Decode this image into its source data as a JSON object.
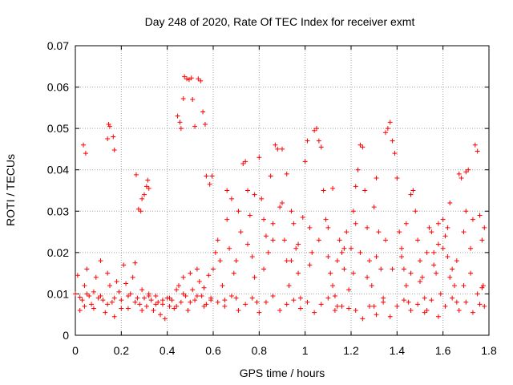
{
  "chart_data": {
    "type": "scatter",
    "title": "Day 248 of 2020, Rate Of TEC Index for receiver exmt",
    "xlabel": "GPS time / hours",
    "ylabel": "ROTI / TECUs",
    "xlim": [
      0,
      1.8
    ],
    "ylim": [
      0,
      0.07
    ],
    "xticks": [
      "0",
      "0.2",
      "0.4",
      "0.6",
      "0.8",
      "1",
      "1.2",
      "1.4",
      "1.6",
      "1.8"
    ],
    "yticks": [
      "0",
      "0.01",
      "0.02",
      "0.03",
      "0.04",
      "0.05",
      "0.06",
      "0.07"
    ],
    "grid": true,
    "legend": "none",
    "marker": "+",
    "color": "#ff0000",
    "series": [
      {
        "points": [
          [
            0.0,
            0.01
          ],
          [
            0.01,
            0.0145
          ],
          [
            0.02,
            0.0092
          ],
          [
            0.03,
            0.0085
          ],
          [
            0.04,
            0.007
          ],
          [
            0.04,
            0.012
          ],
          [
            0.05,
            0.016
          ],
          [
            0.06,
            0.0095
          ],
          [
            0.07,
            0.0075
          ],
          [
            0.08,
            0.0105
          ],
          [
            0.09,
            0.014
          ],
          [
            0.1,
            0.009
          ],
          [
            0.11,
            0.018
          ],
          [
            0.12,
            0.0085
          ],
          [
            0.13,
            0.0055
          ],
          [
            0.14,
            0.015
          ],
          [
            0.15,
            0.012
          ],
          [
            0.16,
            0.008
          ],
          [
            0.17,
            0.0045
          ],
          [
            0.18,
            0.013
          ],
          [
            0.035,
            0.046
          ],
          [
            0.045,
            0.044
          ],
          [
            0.14,
            0.0475
          ],
          [
            0.145,
            0.051
          ],
          [
            0.15,
            0.0505
          ],
          [
            0.165,
            0.048
          ],
          [
            0.17,
            0.0448
          ],
          [
            0.19,
            0.0105
          ],
          [
            0.2,
            0.0085
          ],
          [
            0.21,
            0.017
          ],
          [
            0.22,
            0.0125
          ],
          [
            0.23,
            0.0065
          ],
          [
            0.24,
            0.01
          ],
          [
            0.25,
            0.014
          ],
          [
            0.26,
            0.0175
          ],
          [
            0.27,
            0.009
          ],
          [
            0.28,
            0.0075
          ],
          [
            0.29,
            0.011
          ],
          [
            0.265,
            0.0388
          ],
          [
            0.275,
            0.0305
          ],
          [
            0.285,
            0.03
          ],
          [
            0.29,
            0.033
          ],
          [
            0.3,
            0.034
          ],
          [
            0.31,
            0.036
          ],
          [
            0.315,
            0.0375
          ],
          [
            0.32,
            0.0355
          ],
          [
            0.3,
            0.009
          ],
          [
            0.31,
            0.007
          ],
          [
            0.32,
            0.01
          ],
          [
            0.33,
            0.0085
          ],
          [
            0.34,
            0.006
          ],
          [
            0.35,
            0.0095
          ],
          [
            0.36,
            0.008
          ],
          [
            0.37,
            0.005
          ],
          [
            0.38,
            0.0075
          ],
          [
            0.39,
            0.004
          ],
          [
            0.4,
            0.009
          ],
          [
            0.41,
            0.007
          ],
          [
            0.42,
            0.0085
          ],
          [
            0.43,
            0.0065
          ],
          [
            0.44,
            0.011
          ],
          [
            0.445,
            0.053
          ],
          [
            0.455,
            0.0515
          ],
          [
            0.46,
            0.05
          ],
          [
            0.47,
            0.0572
          ],
          [
            0.475,
            0.0625
          ],
          [
            0.485,
            0.062
          ],
          [
            0.495,
            0.0618
          ],
          [
            0.505,
            0.0622
          ],
          [
            0.51,
            0.057
          ],
          [
            0.52,
            0.0505
          ],
          [
            0.535,
            0.062
          ],
          [
            0.545,
            0.0615
          ],
          [
            0.555,
            0.054
          ],
          [
            0.565,
            0.051
          ],
          [
            0.57,
            0.0385
          ],
          [
            0.585,
            0.0365
          ],
          [
            0.595,
            0.0385
          ],
          [
            0.45,
            0.012
          ],
          [
            0.46,
            0.008
          ],
          [
            0.47,
            0.014
          ],
          [
            0.48,
            0.0095
          ],
          [
            0.49,
            0.006
          ],
          [
            0.5,
            0.015
          ],
          [
            0.51,
            0.011
          ],
          [
            0.52,
            0.0085
          ],
          [
            0.53,
            0.016
          ],
          [
            0.54,
            0.013
          ],
          [
            0.55,
            0.0095
          ],
          [
            0.56,
            0.0115
          ],
          [
            0.57,
            0.0075
          ],
          [
            0.58,
            0.0145
          ],
          [
            0.59,
            0.009
          ],
          [
            0.6,
            0.016
          ],
          [
            0.61,
            0.02
          ],
          [
            0.62,
            0.023
          ],
          [
            0.63,
            0.018
          ],
          [
            0.64,
            0.012
          ],
          [
            0.65,
            0.0085
          ],
          [
            0.66,
            0.028
          ],
          [
            0.67,
            0.021
          ],
          [
            0.68,
            0.033
          ],
          [
            0.69,
            0.015
          ],
          [
            0.7,
            0.009
          ],
          [
            0.71,
            0.03
          ],
          [
            0.72,
            0.025
          ],
          [
            0.73,
            0.0415
          ],
          [
            0.74,
            0.042
          ],
          [
            0.75,
            0.035
          ],
          [
            0.76,
            0.029
          ],
          [
            0.77,
            0.019
          ],
          [
            0.78,
            0.014
          ],
          [
            0.79,
            0.008
          ],
          [
            0.8,
            0.043
          ],
          [
            0.81,
            0.033
          ],
          [
            0.82,
            0.028
          ],
          [
            0.83,
            0.024
          ],
          [
            0.84,
            0.02
          ],
          [
            0.85,
            0.0385
          ],
          [
            0.86,
            0.027
          ],
          [
            0.87,
            0.046
          ],
          [
            0.88,
            0.045
          ],
          [
            0.89,
            0.031
          ],
          [
            0.9,
            0.045
          ],
          [
            0.91,
            0.023
          ],
          [
            0.92,
            0.018
          ],
          [
            0.93,
            0.012
          ],
          [
            0.94,
            0.03
          ],
          [
            0.95,
            0.027
          ],
          [
            0.96,
            0.021
          ],
          [
            0.97,
            0.015
          ],
          [
            0.98,
            0.009
          ],
          [
            0.99,
            0.0285
          ],
          [
            1.0,
            0.042
          ],
          [
            1.01,
            0.047
          ],
          [
            1.02,
            0.026
          ],
          [
            1.03,
            0.02
          ],
          [
            1.04,
            0.0495
          ],
          [
            1.05,
            0.05
          ],
          [
            1.06,
            0.047
          ],
          [
            1.07,
            0.0455
          ],
          [
            1.08,
            0.035
          ],
          [
            1.09,
            0.028
          ],
          [
            1.1,
            0.019
          ],
          [
            1.11,
            0.015
          ],
          [
            1.12,
            0.012
          ],
          [
            1.13,
            0.0095
          ],
          [
            1.14,
            0.007
          ],
          [
            1.15,
            0.023
          ],
          [
            1.16,
            0.02
          ],
          [
            1.17,
            0.016
          ],
          [
            1.18,
            0.025
          ],
          [
            1.19,
            0.011
          ],
          [
            1.2,
            0.021
          ],
          [
            1.21,
            0.03
          ],
          [
            1.22,
            0.036
          ],
          [
            1.23,
            0.04
          ],
          [
            1.24,
            0.046
          ],
          [
            1.25,
            0.0455
          ],
          [
            1.26,
            0.035
          ],
          [
            1.27,
            0.026
          ],
          [
            1.28,
            0.018
          ],
          [
            1.29,
            0.012
          ],
          [
            1.3,
            0.007
          ],
          [
            1.31,
            0.038
          ],
          [
            1.32,
            0.025
          ],
          [
            1.33,
            0.016
          ],
          [
            1.34,
            0.009
          ],
          [
            1.35,
            0.049
          ],
          [
            1.36,
            0.05
          ],
          [
            1.37,
            0.0515
          ],
          [
            1.38,
            0.047
          ],
          [
            1.39,
            0.044
          ],
          [
            1.4,
            0.038
          ],
          [
            1.41,
            0.025
          ],
          [
            1.42,
            0.021
          ],
          [
            1.43,
            0.016
          ],
          [
            1.44,
            0.012
          ],
          [
            1.45,
            0.008
          ],
          [
            1.46,
            0.034
          ],
          [
            1.47,
            0.035
          ],
          [
            1.48,
            0.03
          ],
          [
            1.49,
            0.023
          ],
          [
            1.5,
            0.018
          ],
          [
            1.51,
            0.014
          ],
          [
            1.52,
            0.009
          ],
          [
            1.53,
            0.006
          ],
          [
            1.54,
            0.026
          ],
          [
            1.55,
            0.025
          ],
          [
            1.56,
            0.02
          ],
          [
            1.57,
            0.015
          ],
          [
            1.58,
            0.027
          ],
          [
            1.59,
            0.01
          ],
          [
            1.6,
            0.028
          ],
          [
            1.61,
            0.024
          ],
          [
            1.62,
            0.019
          ],
          [
            1.63,
            0.032
          ],
          [
            1.64,
            0.016
          ],
          [
            1.65,
            0.012
          ],
          [
            1.66,
            0.008
          ],
          [
            1.67,
            0.039
          ],
          [
            1.68,
            0.038
          ],
          [
            1.69,
            0.025
          ],
          [
            1.7,
            0.0395
          ],
          [
            1.71,
            0.04
          ],
          [
            1.72,
            0.021
          ],
          [
            1.73,
            0.028
          ],
          [
            1.74,
            0.046
          ],
          [
            1.75,
            0.0445
          ],
          [
            1.76,
            0.029
          ],
          [
            1.77,
            0.023
          ],
          [
            1.775,
            0.012
          ],
          [
            1.78,
            0.026
          ],
          [
            0.02,
            0.006
          ],
          [
            0.05,
            0.01
          ],
          [
            0.08,
            0.0065
          ],
          [
            0.11,
            0.0095
          ],
          [
            0.14,
            0.0075
          ],
          [
            0.17,
            0.009
          ],
          [
            0.2,
            0.0065
          ],
          [
            0.23,
            0.0095
          ],
          [
            0.26,
            0.008
          ],
          [
            0.29,
            0.006
          ],
          [
            0.32,
            0.0095
          ],
          [
            0.35,
            0.0075
          ],
          [
            0.38,
            0.0085
          ],
          [
            0.41,
            0.009
          ],
          [
            0.44,
            0.007
          ],
          [
            0.47,
            0.01
          ],
          [
            0.5,
            0.008
          ],
          [
            0.53,
            0.0095
          ],
          [
            0.56,
            0.007
          ],
          [
            0.59,
            0.0085
          ],
          [
            0.62,
            0.008
          ],
          [
            0.65,
            0.007
          ],
          [
            0.68,
            0.0095
          ],
          [
            0.71,
            0.006
          ],
          [
            0.74,
            0.0075
          ],
          [
            0.77,
            0.009
          ],
          [
            0.8,
            0.0055
          ],
          [
            0.83,
            0.008
          ],
          [
            0.86,
            0.0095
          ],
          [
            0.89,
            0.006
          ],
          [
            0.92,
            0.0075
          ],
          [
            0.95,
            0.0085
          ],
          [
            0.98,
            0.0065
          ],
          [
            1.01,
            0.008
          ],
          [
            1.04,
            0.0055
          ],
          [
            1.07,
            0.0075
          ],
          [
            1.1,
            0.009
          ],
          [
            1.13,
            0.006
          ],
          [
            1.16,
            0.007
          ],
          [
            1.19,
            0.0065
          ],
          [
            1.22,
            0.006
          ],
          [
            1.25,
            0.004
          ],
          [
            1.28,
            0.007
          ],
          [
            1.31,
            0.005
          ],
          [
            1.34,
            0.008
          ],
          [
            1.37,
            0.0045
          ],
          [
            1.4,
            0.007
          ],
          [
            1.43,
            0.0085
          ],
          [
            1.46,
            0.006
          ],
          [
            1.49,
            0.0075
          ],
          [
            1.52,
            0.0055
          ],
          [
            1.55,
            0.0085
          ],
          [
            1.58,
            0.0045
          ],
          [
            1.61,
            0.007
          ],
          [
            1.64,
            0.009
          ],
          [
            1.67,
            0.006
          ],
          [
            1.7,
            0.008
          ],
          [
            1.73,
            0.0055
          ],
          [
            1.76,
            0.0075
          ],
          [
            1.78,
            0.007
          ],
          [
            0.66,
            0.035
          ],
          [
            0.7,
            0.018
          ],
          [
            0.75,
            0.022
          ],
          [
            0.78,
            0.034
          ],
          [
            0.82,
            0.016
          ],
          [
            0.86,
            0.023
          ],
          [
            0.9,
            0.032
          ],
          [
            0.94,
            0.018
          ],
          [
            0.97,
            0.022
          ],
          [
            1.02,
            0.017
          ],
          [
            1.06,
            0.023
          ],
          [
            1.1,
            0.026
          ],
          [
            1.14,
            0.018
          ],
          [
            1.17,
            0.021
          ],
          [
            1.21,
            0.015
          ],
          [
            1.24,
            0.02
          ],
          [
            1.27,
            0.014
          ],
          [
            1.31,
            0.019
          ],
          [
            1.35,
            0.023
          ],
          [
            1.38,
            0.016
          ],
          [
            1.42,
            0.019
          ],
          [
            1.46,
            0.015
          ],
          [
            1.5,
            0.013
          ],
          [
            1.53,
            0.02
          ],
          [
            1.56,
            0.017
          ],
          [
            1.6,
            0.021
          ],
          [
            1.63,
            0.014
          ],
          [
            1.66,
            0.018
          ],
          [
            1.69,
            0.012
          ],
          [
            1.72,
            0.015
          ],
          [
            1.75,
            0.01
          ],
          [
            1.77,
            0.0115
          ],
          [
            0.92,
            0.039
          ],
          [
            1.12,
            0.0355
          ],
          [
            1.22,
            0.027
          ],
          [
            1.3,
            0.031
          ],
          [
            1.44,
            0.027
          ],
          [
            1.58,
            0.022
          ],
          [
            1.62,
            0.026
          ],
          [
            1.7,
            0.03
          ]
        ]
      }
    ]
  }
}
